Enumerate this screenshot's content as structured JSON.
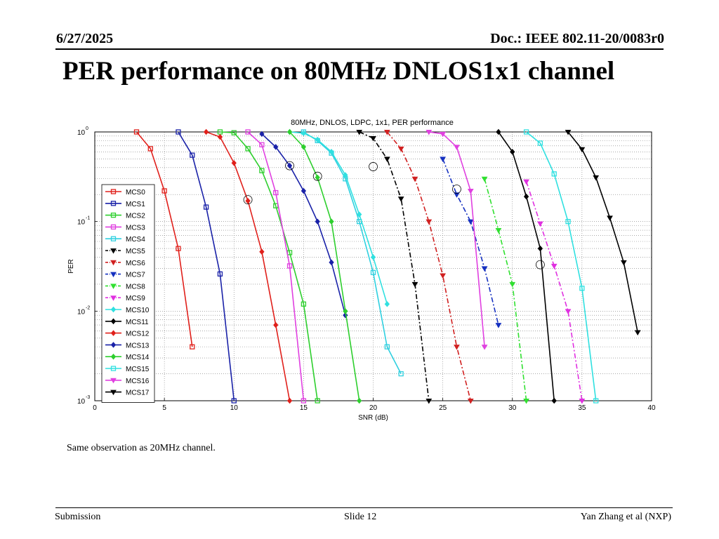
{
  "header": {
    "date": "6/27/2025",
    "doc": "Doc.: IEEE 802.11-20/0083r0"
  },
  "slide_title": "PER performance on 80MHz DNLOS1x1 channel",
  "note": "Same observation as 20MHz channel.",
  "footer": {
    "left": "Submission",
    "center": "Slide 12",
    "right": "Yan Zhang et al (NXP)"
  },
  "chart_data": {
    "type": "line",
    "title": "80MHz, DNLOS, LDPC, 1x1, PER performance",
    "xlabel": "SNR (dB)",
    "ylabel": "PER",
    "xlim": [
      0,
      40
    ],
    "ylim": [
      0.001,
      1
    ],
    "y_scale": "log",
    "x_ticks": [
      "0",
      "5",
      "10",
      "15",
      "20",
      "25",
      "30",
      "35",
      "40"
    ],
    "y_ticks": [
      {
        "base": "10",
        "exp": "0",
        "v": 1
      },
      {
        "base": "10",
        "exp": "-1",
        "v": 0.1
      },
      {
        "base": "10",
        "exp": "-2",
        "v": 0.01
      },
      {
        "base": "10",
        "exp": "-3",
        "v": 0.001
      }
    ],
    "grid": true,
    "legend_position": "left",
    "annotations": "circled points at MCS6/7/11/13/15 transitions",
    "circles": [
      [
        11,
        0.175
      ],
      [
        14,
        0.42
      ],
      [
        16,
        0.32
      ],
      [
        20,
        0.41
      ],
      [
        26,
        0.23
      ],
      [
        32,
        0.033
      ]
    ],
    "series": [
      {
        "name": "MCS0",
        "color": "#e0201b",
        "style": "solid",
        "marker": "square",
        "x": [
          3,
          4,
          5,
          6,
          7
        ],
        "y": [
          1,
          0.65,
          0.22,
          0.05,
          0.004
        ]
      },
      {
        "name": "MCS1",
        "color": "#1a22a8",
        "style": "solid",
        "marker": "square",
        "x": [
          6,
          7,
          8,
          9,
          10
        ],
        "y": [
          1,
          0.55,
          0.145,
          0.026,
          0.001
        ]
      },
      {
        "name": "MCS2",
        "color": "#2ecf2e",
        "style": "solid",
        "marker": "square",
        "x": [
          9,
          10,
          11,
          12,
          13,
          14,
          15,
          16
        ],
        "y": [
          1,
          0.98,
          0.65,
          0.37,
          0.15,
          0.045,
          0.012,
          0.001
        ]
      },
      {
        "name": "MCS3",
        "color": "#e040e0",
        "style": "solid",
        "marker": "square",
        "x": [
          11,
          12,
          13,
          14,
          15
        ],
        "y": [
          1,
          0.72,
          0.21,
          0.032,
          0.001
        ]
      },
      {
        "name": "MCS4",
        "color": "#30d0e0",
        "style": "solid",
        "marker": "square",
        "x": [
          15,
          16,
          17,
          18,
          19,
          20,
          21,
          22
        ],
        "y": [
          1,
          0.8,
          0.58,
          0.3,
          0.1,
          0.027,
          0.004,
          0.002
        ]
      },
      {
        "name": "MCS5",
        "color": "#000000",
        "style": "dashdot",
        "marker": "triangle",
        "x": [
          19,
          20,
          21,
          22,
          23,
          24
        ],
        "y": [
          1,
          0.85,
          0.5,
          0.18,
          0.02,
          0.001
        ]
      },
      {
        "name": "MCS6",
        "color": "#d02020",
        "style": "dashdot",
        "marker": "triangle",
        "x": [
          21,
          22,
          23,
          24,
          25,
          26,
          27
        ],
        "y": [
          1,
          0.65,
          0.3,
          0.1,
          0.025,
          0.004,
          0.001
        ]
      },
      {
        "name": "MCS7",
        "color": "#1530c0",
        "style": "dashdot",
        "marker": "triangle",
        "x": [
          25,
          26,
          27,
          28,
          29
        ],
        "y": [
          0.5,
          0.2,
          0.1,
          0.03,
          0.007
        ]
      },
      {
        "name": "MCS8",
        "color": "#30e030",
        "style": "dashdot",
        "marker": "triangle",
        "x": [
          28,
          29,
          30,
          31
        ],
        "y": [
          0.3,
          0.08,
          0.02,
          0.001
        ]
      },
      {
        "name": "MCS9",
        "color": "#e030e0",
        "style": "dashdot",
        "marker": "triangle",
        "x": [
          31,
          32,
          33,
          34,
          35
        ],
        "y": [
          0.28,
          0.095,
          0.032,
          0.01,
          0.001
        ]
      },
      {
        "name": "MCS10",
        "color": "#30e0e0",
        "style": "solid",
        "marker": "diamond",
        "x": [
          14,
          15,
          16,
          17,
          18,
          19,
          20,
          21
        ],
        "y": [
          1,
          0.97,
          0.82,
          0.6,
          0.33,
          0.12,
          0.04,
          0.012
        ]
      },
      {
        "name": "MCS11",
        "color": "#000000",
        "style": "solid",
        "marker": "diamond",
        "x": [
          29,
          30,
          31,
          32,
          33
        ],
        "y": [
          1,
          0.6,
          0.19,
          0.05,
          0.001
        ]
      },
      {
        "name": "MCS12",
        "color": "#e0201b",
        "style": "solid",
        "marker": "diamond",
        "x": [
          8,
          9,
          10,
          11,
          12,
          13,
          14
        ],
        "y": [
          1,
          0.88,
          0.45,
          0.17,
          0.046,
          0.007,
          0.001
        ]
      },
      {
        "name": "MCS13",
        "color": "#1a22a8",
        "style": "solid",
        "marker": "diamond",
        "x": [
          12,
          13,
          14,
          15,
          16,
          17,
          18
        ],
        "y": [
          0.95,
          0.68,
          0.42,
          0.22,
          0.1,
          0.035,
          0.009
        ]
      },
      {
        "name": "MCS14",
        "color": "#2ecf2e",
        "style": "solid",
        "marker": "diamond",
        "x": [
          14,
          15,
          16,
          17,
          18,
          19
        ],
        "y": [
          1,
          0.68,
          0.31,
          0.1,
          0.01,
          0.001
        ]
      },
      {
        "name": "MCS15",
        "color": "#30e0e0",
        "style": "solid",
        "marker": "square",
        "x": [
          31,
          32,
          33,
          34,
          35,
          36
        ],
        "y": [
          1,
          0.75,
          0.34,
          0.1,
          0.018,
          0.001
        ]
      },
      {
        "name": "MCS16",
        "color": "#e040e0",
        "style": "solid",
        "marker": "triangle",
        "x": [
          24,
          25,
          26,
          27,
          28
        ],
        "y": [
          1,
          0.95,
          0.68,
          0.22,
          0.004
        ]
      },
      {
        "name": "MCS17",
        "color": "#000000",
        "style": "solid",
        "marker": "triangle",
        "x": [
          34,
          35,
          36,
          37,
          38,
          39
        ],
        "y": [
          1,
          0.64,
          0.31,
          0.11,
          0.035,
          0.0058
        ]
      }
    ]
  }
}
